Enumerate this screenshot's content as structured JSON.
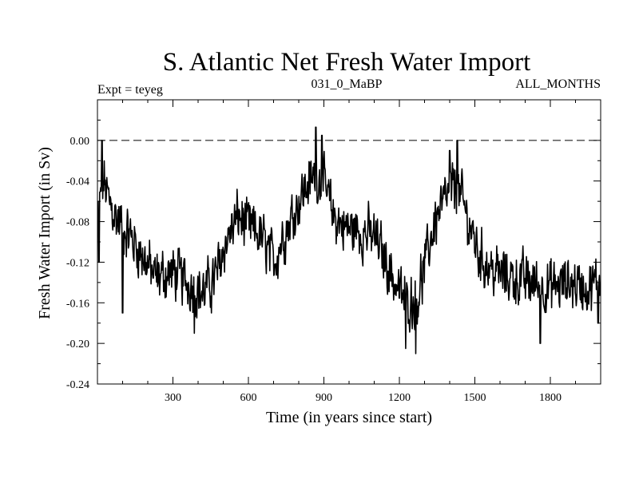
{
  "chart_data": {
    "type": "line",
    "title": "S. Atlantic Net Fresh Water Import",
    "subtitle_left": "Expt = teyeg",
    "subtitle_center": "031_0_MaBP",
    "subtitle_right": "ALL_MONTHS",
    "xlabel": "Time (in years since start)",
    "ylabel": "Fresh Water Import (in Sv)",
    "xlim": [
      0,
      2000
    ],
    "ylim": [
      -0.24,
      0.04
    ],
    "xticks": [
      300,
      600,
      900,
      1200,
      1500,
      1800
    ],
    "xtick_labels": [
      "300",
      "600",
      "900",
      "1200",
      "1500",
      "1800"
    ],
    "yticks": [
      0.0,
      -0.04,
      -0.08,
      -0.12,
      -0.16,
      -0.2,
      -0.24
    ],
    "ytick_labels": [
      "0.00",
      "-0.04",
      "-0.08",
      "-0.12",
      "-0.16",
      "-0.20",
      "-0.24"
    ],
    "reference_line": {
      "y": 0.0,
      "style": "dashed"
    },
    "series": [
      {
        "name": "Net Fresh Water Import",
        "x_start": 1,
        "x_step": 2,
        "trend": [
          [
            0,
            -0.085
          ],
          [
            10,
            -0.06
          ],
          [
            25,
            -0.04
          ],
          [
            45,
            -0.06
          ],
          [
            70,
            -0.075
          ],
          [
            120,
            -0.09
          ],
          [
            170,
            -0.11
          ],
          [
            230,
            -0.135
          ],
          [
            300,
            -0.13
          ],
          [
            360,
            -0.14
          ],
          [
            420,
            -0.15
          ],
          [
            470,
            -0.135
          ],
          [
            510,
            -0.1
          ],
          [
            560,
            -0.075
          ],
          [
            600,
            -0.085
          ],
          [
            650,
            -0.095
          ],
          [
            700,
            -0.12
          ],
          [
            730,
            -0.1
          ],
          [
            780,
            -0.07
          ],
          [
            830,
            -0.045
          ],
          [
            870,
            -0.035
          ],
          [
            900,
            -0.045
          ],
          [
            940,
            -0.075
          ],
          [
            980,
            -0.085
          ],
          [
            1050,
            -0.09
          ],
          [
            1100,
            -0.095
          ],
          [
            1150,
            -0.12
          ],
          [
            1190,
            -0.145
          ],
          [
            1230,
            -0.16
          ],
          [
            1270,
            -0.155
          ],
          [
            1300,
            -0.125
          ],
          [
            1340,
            -0.08
          ],
          [
            1380,
            -0.06
          ],
          [
            1420,
            -0.045
          ],
          [
            1450,
            -0.06
          ],
          [
            1480,
            -0.085
          ],
          [
            1520,
            -0.115
          ],
          [
            1580,
            -0.13
          ],
          [
            1650,
            -0.135
          ],
          [
            1720,
            -0.14
          ],
          [
            1800,
            -0.145
          ],
          [
            1880,
            -0.14
          ],
          [
            1950,
            -0.145
          ],
          [
            2000,
            -0.14
          ]
        ],
        "noise_amplitude": 0.02,
        "notable_points": [
          [
            6,
            -0.12
          ],
          [
            18,
            0.0
          ],
          [
            100,
            -0.17
          ],
          [
            385,
            -0.19
          ],
          [
            745,
            -0.1
          ],
          [
            868,
            0.013
          ],
          [
            892,
            0.005
          ],
          [
            1225,
            -0.205
          ],
          [
            1265,
            -0.21
          ],
          [
            1400,
            -0.01
          ],
          [
            1430,
            0.0
          ],
          [
            1760,
            -0.2
          ],
          [
            1990,
            -0.18
          ]
        ]
      }
    ]
  }
}
